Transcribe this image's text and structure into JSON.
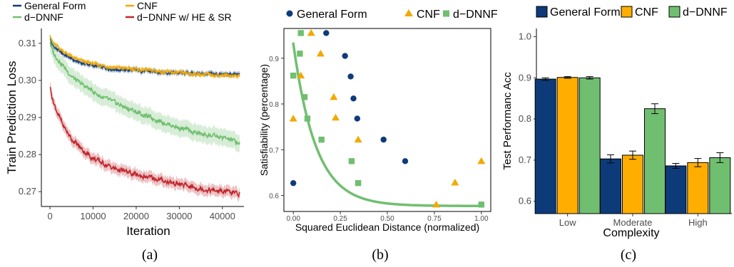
{
  "chart_data": [
    {
      "type": "line",
      "ylabel": "Train Prediction Loss",
      "xlabel": "Iteration",
      "caption": "(a)",
      "xlim": [
        -2000,
        45000
      ],
      "ylim": [
        0.266,
        0.314
      ],
      "xticks": [
        0,
        10000,
        20000,
        30000,
        40000
      ],
      "xtick_labels": [
        "0",
        "10000",
        "20000",
        "30000",
        "40000"
      ],
      "yticks": [
        0.27,
        0.28,
        0.29,
        0.3,
        0.31
      ],
      "ytick_labels": [
        "0.27",
        "0.28",
        "0.29",
        "0.30",
        "0.31"
      ],
      "legend_position": "top",
      "series": [
        {
          "name": "General Form",
          "color": "#0d3b7a",
          "x": [
            0,
            500,
            1000,
            2000,
            3000,
            4000,
            5000,
            6000,
            8000,
            10000,
            12000,
            15000,
            18000,
            20000,
            25000,
            30000,
            35000,
            40000,
            44000
          ],
          "y": [
            0.3115,
            0.3095,
            0.309,
            0.308,
            0.3072,
            0.3065,
            0.3058,
            0.3052,
            0.3045,
            0.304,
            0.3035,
            0.303,
            0.3028,
            0.3027,
            0.3023,
            0.302,
            0.3018,
            0.3016,
            0.3015
          ],
          "band": 0.0007
        },
        {
          "name": "CNF",
          "color": "#f2a900",
          "x": [
            0,
            500,
            1000,
            2000,
            3000,
            4000,
            5000,
            6000,
            8000,
            10000,
            12000,
            15000,
            18000,
            20000,
            25000,
            30000,
            35000,
            40000,
            44000
          ],
          "y": [
            0.3125,
            0.3105,
            0.3098,
            0.3088,
            0.308,
            0.3072,
            0.3065,
            0.3058,
            0.305,
            0.3045,
            0.304,
            0.3035,
            0.3032,
            0.303,
            0.3025,
            0.302,
            0.3016,
            0.3014,
            0.3012
          ],
          "band": 0.0006
        },
        {
          "name": "d−DNNF",
          "color": "#70bf70",
          "x": [
            0,
            500,
            1000,
            2000,
            3000,
            4000,
            5000,
            6000,
            8000,
            10000,
            12000,
            15000,
            18000,
            20000,
            22000,
            25000,
            28000,
            30000,
            33000,
            35000,
            38000,
            40000,
            42000,
            44000
          ],
          "y": [
            0.3105,
            0.3082,
            0.307,
            0.3055,
            0.304,
            0.3025,
            0.3012,
            0.3,
            0.2985,
            0.297,
            0.2955,
            0.294,
            0.2925,
            0.2915,
            0.2905,
            0.2893,
            0.288,
            0.2872,
            0.2862,
            0.2855,
            0.285,
            0.2845,
            0.284,
            0.283
          ],
          "band": 0.0023
        },
        {
          "name": "d−DNNF w/ HE & SR",
          "color": "#c0272d",
          "x": [
            0,
            500,
            1000,
            2000,
            3000,
            4000,
            5000,
            6000,
            8000,
            10000,
            12000,
            15000,
            18000,
            20000,
            22000,
            25000,
            28000,
            30000,
            33000,
            35000,
            38000,
            40000,
            42000,
            44000
          ],
          "y": [
            0.2985,
            0.2955,
            0.2935,
            0.2905,
            0.288,
            0.286,
            0.2843,
            0.283,
            0.2808,
            0.279,
            0.2778,
            0.2762,
            0.2752,
            0.2745,
            0.274,
            0.2733,
            0.2725,
            0.272,
            0.2713,
            0.2708,
            0.2703,
            0.27,
            0.2697,
            0.2695
          ],
          "band": 0.0015
        }
      ]
    },
    {
      "type": "scatter",
      "ylabel": "Satisfiability (percentage)",
      "xlabel": "Squared Euclidean Distance (normalized)",
      "caption": "(b)",
      "xlim": [
        -0.05,
        1.05
      ],
      "ylim": [
        0.565,
        0.965
      ],
      "xticks": [
        0,
        0.25,
        0.5,
        0.75,
        1.0
      ],
      "xtick_labels": [
        "0.00",
        "0.25",
        "0.50",
        "0.75",
        "1.00"
      ],
      "yticks": [
        0.6,
        0.7,
        0.8,
        0.9
      ],
      "ytick_labels": [
        "0.6",
        "0.7",
        "0.8",
        "0.9"
      ],
      "legend_position": "top",
      "series": [
        {
          "name": "General Form",
          "color": "#0d3b7a",
          "marker": "circle",
          "points": [
            [
              0.0,
              0.627
            ],
            [
              0.175,
              0.955
            ],
            [
              0.275,
              0.905
            ],
            [
              0.305,
              0.86
            ],
            [
              0.32,
              0.812
            ],
            [
              0.34,
              0.768
            ],
            [
              0.48,
              0.722
            ],
            [
              0.595,
              0.675
            ],
            [
              1.0,
              0.58
            ]
          ]
        },
        {
          "name": "CNF",
          "color": "#f2a900",
          "marker": "triangle",
          "points": [
            [
              0.0,
              0.768
            ],
            [
              0.04,
              0.862
            ],
            [
              0.095,
              0.955
            ],
            [
              0.145,
              0.91
            ],
            [
              0.215,
              0.815
            ],
            [
              0.225,
              0.77
            ],
            [
              0.345,
              0.722
            ],
            [
              0.76,
              0.58
            ],
            [
              0.86,
              0.628
            ],
            [
              1.0,
              0.675
            ]
          ]
        },
        {
          "name": "d−DNNF",
          "color": "#70bf70",
          "marker": "square",
          "points": [
            [
              0.0,
              0.862
            ],
            [
              0.04,
              0.955
            ],
            [
              0.035,
              0.91
            ],
            [
              0.06,
              0.815
            ],
            [
              0.075,
              0.768
            ],
            [
              0.15,
              0.722
            ],
            [
              0.31,
              0.675
            ],
            [
              0.345,
              0.627
            ],
            [
              1.0,
              0.58
            ]
          ]
        }
      ],
      "fit": {
        "color": "#70bf70",
        "a": 0.355,
        "k": 8.3,
        "c": 0.577
      }
    },
    {
      "type": "bar",
      "ylabel": "Test Performanc Acc",
      "xlabel": "Complexity",
      "caption": "(c)",
      "categories": [
        "Low",
        "Moderate",
        "High"
      ],
      "ylim": [
        0.57,
        1.02
      ],
      "yticks": [
        0.6,
        0.7,
        0.8,
        0.9,
        1.0
      ],
      "ytick_labels": [
        "0.6",
        "0.7",
        "0.8",
        "0.9",
        "1.0"
      ],
      "legend_position": "top",
      "series": [
        {
          "name": "General Form",
          "color": "#0d3b7a",
          "values": [
            0.897,
            0.703,
            0.686
          ],
          "err": [
            0.003,
            0.01,
            0.006
          ]
        },
        {
          "name": "CNF",
          "color": "#ffae00",
          "values": [
            0.901,
            0.712,
            0.694
          ],
          "err": [
            0.002,
            0.01,
            0.01
          ]
        },
        {
          "name": "d−DNNF",
          "color": "#70bf70",
          "values": [
            0.9,
            0.825,
            0.706
          ],
          "err": [
            0.003,
            0.012,
            0.012
          ]
        }
      ]
    }
  ]
}
